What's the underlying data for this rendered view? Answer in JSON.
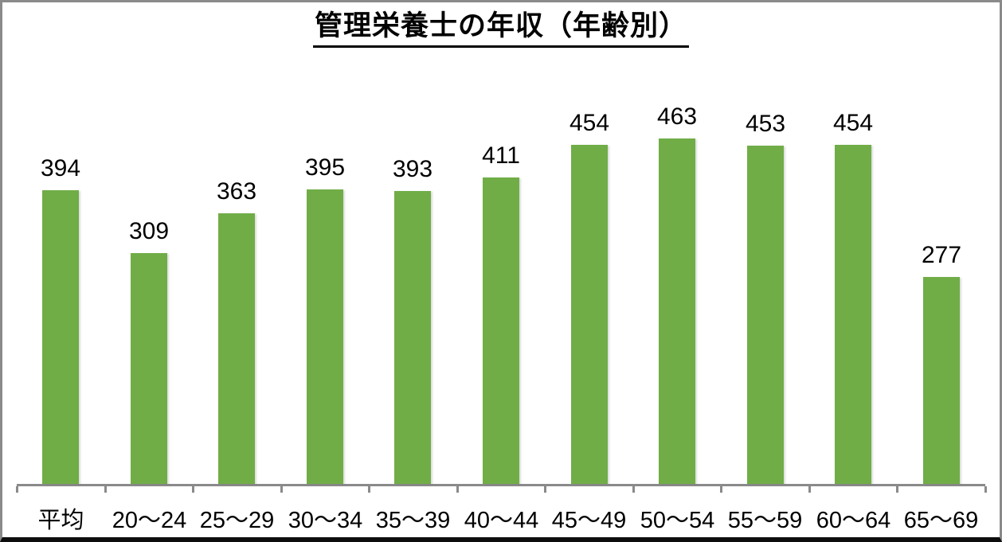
{
  "chart_data": {
    "type": "bar",
    "title": "管理栄養士の年収（年齢別）",
    "categories": [
      "平均",
      "20〜24",
      "25〜29",
      "30〜34",
      "35〜39",
      "40〜44",
      "45〜49",
      "50〜54",
      "55〜59",
      "60〜64",
      "65〜69"
    ],
    "values": [
      394,
      309,
      363,
      395,
      393,
      411,
      454,
      463,
      453,
      454,
      277
    ],
    "xlabel": "",
    "ylabel": "",
    "ylim": [
      0,
      640
    ],
    "grid": false,
    "legend": false,
    "data_labels": true,
    "colors": {
      "bar": "#70AD47",
      "axis": "#8A8A8A",
      "text": "#000000",
      "frame_border": "#8A8A8A",
      "bottom_border": "#0D0D0D",
      "background": "#FFFFFF"
    }
  }
}
